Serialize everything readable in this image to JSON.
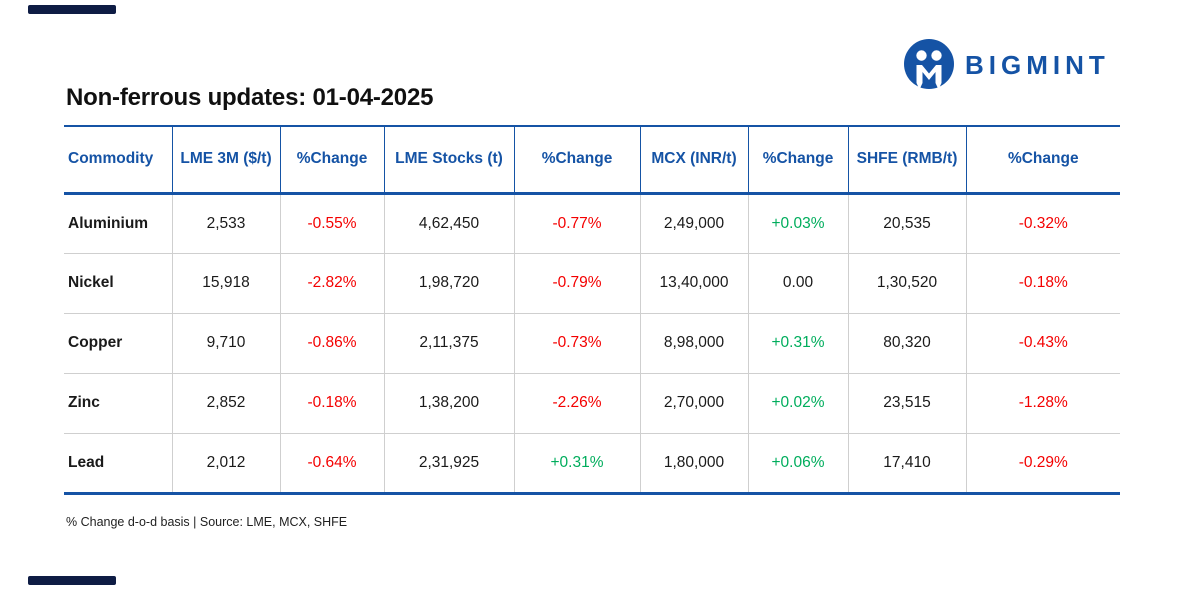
{
  "brand": {
    "logo_text": "BIGMINT",
    "logo_icon": "bigmint-m-mark"
  },
  "title": "Non-ferrous updates: 01-04-2025",
  "chart_data": {
    "type": "table",
    "title": "Non-ferrous updates: 01-04-2025",
    "columns": [
      "Commodity",
      "LME 3M ($/t)",
      "%Change",
      "LME Stocks (t)",
      "%Change",
      "MCX (INR/t)",
      "%Change",
      "SHFE (RMB/t)",
      "%Change"
    ],
    "fields": [
      "commodity",
      "lme_3m",
      "lme_3m_change",
      "lme_stocks",
      "lme_stocks_change",
      "mcx",
      "mcx_change",
      "shfe",
      "shfe_change"
    ],
    "rows": [
      {
        "commodity": "Aluminium",
        "lme_3m": "2,533",
        "lme_3m_change": "-0.55%",
        "lme_stocks": "4,62,450",
        "lme_stocks_change": "-0.77%",
        "mcx": "2,49,000",
        "mcx_change": "+0.03%",
        "shfe": "20,535",
        "shfe_change": "-0.32%"
      },
      {
        "commodity": "Nickel",
        "lme_3m": "15,918",
        "lme_3m_change": "-2.82%",
        "lme_stocks": "1,98,720",
        "lme_stocks_change": "-0.79%",
        "mcx": "13,40,000",
        "mcx_change": "0.00",
        "shfe": "1,30,520",
        "shfe_change": "-0.18%"
      },
      {
        "commodity": "Copper",
        "lme_3m": "9,710",
        "lme_3m_change": "-0.86%",
        "lme_stocks": "2,11,375",
        "lme_stocks_change": "-0.73%",
        "mcx": "8,98,000",
        "mcx_change": "+0.31%",
        "shfe": "80,320",
        "shfe_change": "-0.43%"
      },
      {
        "commodity": "Zinc",
        "lme_3m": "2,852",
        "lme_3m_change": "-0.18%",
        "lme_stocks": "1,38,200",
        "lme_stocks_change": "-2.26%",
        "mcx": "2,70,000",
        "mcx_change": "+0.02%",
        "shfe": "23,515",
        "shfe_change": "-1.28%"
      },
      {
        "commodity": "Lead",
        "lme_3m": "2,012",
        "lme_3m_change": "-0.64%",
        "lme_stocks": "2,31,925",
        "lme_stocks_change": "+0.31%",
        "mcx": "1,80,000",
        "mcx_change": "+0.06%",
        "shfe": "17,410",
        "shfe_change": "-0.29%"
      }
    ],
    "footnote": "% Change d-o-d basis | Source: LME, MCX, SHFE",
    "value_colors": {
      "positive": "#00ad5c",
      "negative": "#f40000",
      "neutral": "#1a1a1a"
    },
    "layout": {
      "grid": "on",
      "header_color": "#1553a5"
    }
  },
  "colors": {
    "brand_blue": "#1553a5",
    "accent_bar_navy": "#0e1c44",
    "grid_gray": "#cfcfcf"
  }
}
